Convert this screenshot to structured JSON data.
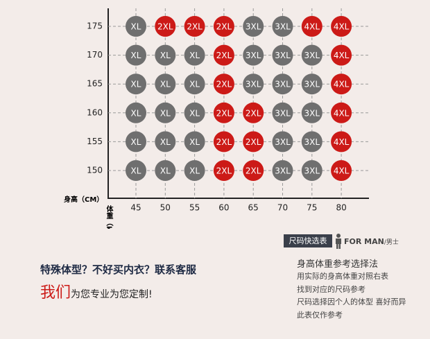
{
  "grid": {
    "y_label": "身高（CM）",
    "x_label": "体重（kg）",
    "heights": [
      175,
      170,
      165,
      160,
      155,
      150
    ],
    "weights": [
      45,
      50,
      55,
      60,
      65,
      70,
      75,
      80
    ],
    "cells": [
      [
        "XL",
        "2XL",
        "2XL",
        "2XL",
        "3XL",
        "3XL",
        "4XL",
        "4XL"
      ],
      [
        "XL",
        "XL",
        "XL",
        "2XL",
        "3XL",
        "3XL",
        "3XL",
        "4XL"
      ],
      [
        "XL",
        "XL",
        "XL",
        "2XL",
        "3XL",
        "3XL",
        "3XL",
        "4XL"
      ],
      [
        "XL",
        "XL",
        "XL",
        "2XL",
        "2XL",
        "3XL",
        "3XL",
        "4XL"
      ],
      [
        "XL",
        "XL",
        "XL",
        "2XL",
        "2XL",
        "3XL",
        "3XL",
        "4XL"
      ],
      [
        "XL",
        "XL",
        "XL",
        "2XL",
        "2XL",
        "3XL",
        "3XL",
        "4XL"
      ]
    ],
    "palette": {
      "XL": "#6f6f6f",
      "2XL": "#cc1a17",
      "3XL": "#6f6f6f",
      "4XL": "#cc1a17"
    }
  },
  "badge": {
    "title": "尺码快选表",
    "gender_en": "FOR MAN",
    "gender_cn": "/男士"
  },
  "promo": {
    "line1": "特殊体型？不好买内衣？联系客服",
    "highlight": "我们",
    "rest": "为您专业为您定制!"
  },
  "guide": {
    "title": "身高体重参考选择法",
    "lines": [
      "用实际的身高体重对照右表",
      "找到对应的尺码参考",
      "尺码选择因个人的体型 喜好而异",
      "此表仅作参考"
    ]
  }
}
